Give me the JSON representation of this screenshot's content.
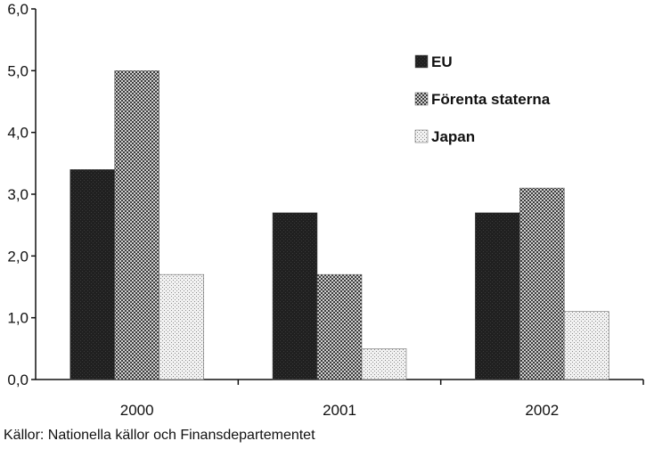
{
  "chart_data": {
    "type": "bar",
    "categories": [
      "2000",
      "2001",
      "2002"
    ],
    "series": [
      {
        "name": "EU",
        "values": [
          3.4,
          2.7,
          2.7
        ],
        "color": "#1c1c1c",
        "pattern": "solid-dark"
      },
      {
        "name": "Förenta staterna",
        "values": [
          5.0,
          1.7,
          3.1
        ],
        "color": "#8a8a8a",
        "pattern": "crosshatch"
      },
      {
        "name": "Japan",
        "values": [
          1.7,
          0.5,
          1.1
        ],
        "color": "#cfcfcf",
        "pattern": "dots"
      }
    ],
    "yticks": [
      "0,0",
      "1,0",
      "2,0",
      "3,0",
      "4,0",
      "5,0",
      "6,0"
    ],
    "ylim": [
      0,
      6
    ],
    "grid": false,
    "legend_position": "top-right",
    "title": "",
    "xlabel": "",
    "ylabel": ""
  },
  "source_note": "Källor: Nationella källor och Finansdepartementet"
}
